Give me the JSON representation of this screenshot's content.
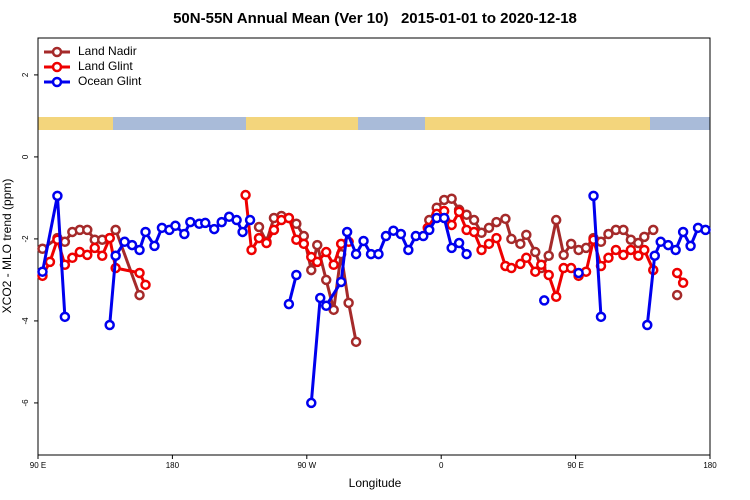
{
  "chart_data": {
    "type": "line",
    "title": "50N-55N Annual Mean (Ver 10)   2015-01-01 to 2020-12-18",
    "x_label": "Longitude",
    "y_label": "XCO2 - MLO trend (ppm)",
    "xlim": [
      90,
      540
    ],
    "xticks": [
      {
        "value": 90,
        "label": "90 E"
      },
      180,
      {
        "value": 270,
        "label": "90 W"
      },
      {
        "value": 360,
        "label": "0"
      },
      {
        "value": 450,
        "label": "90 E"
      },
      {
        "value": 540,
        "label": "180"
      }
    ],
    "ylim": [
      -7.27,
      2.9
    ],
    "yticks": [
      2,
      0,
      -2,
      -4,
      -6
    ],
    "legend": "top-left",
    "series": [
      {
        "name": "Land Nadir",
        "color": "#a52a2a",
        "x": [
          93,
          103,
          108,
          113,
          118,
          123,
          128,
          133,
          138,
          142,
          158,
          null,
          238,
          243,
          248,
          253,
          258,
          263,
          268,
          273,
          277,
          283,
          288,
          293,
          298,
          303,
          null,
          352,
          357,
          362,
          367,
          372,
          377,
          382,
          387,
          392,
          397,
          403,
          407,
          413,
          417,
          423,
          427,
          432,
          437,
          442,
          447,
          452,
          457,
          462,
          467,
          472,
          477,
          482,
          487,
          492,
          496,
          502,
          null,
          518
        ],
        "values": [
          -2.24,
          -1.98,
          -2.07,
          -1.83,
          -1.78,
          -1.78,
          -2.02,
          -2.02,
          -1.98,
          -1.78,
          -3.37,
          null,
          -1.71,
          -2.07,
          -1.49,
          -1.44,
          -1.49,
          -1.63,
          -1.93,
          -2.76,
          -2.15,
          -3.0,
          -3.73,
          -2.37,
          -3.56,
          -4.51,
          null,
          -1.54,
          -1.24,
          -1.05,
          -1.02,
          -1.29,
          -1.41,
          -1.54,
          -1.85,
          -1.73,
          -1.59,
          -1.51,
          -2.0,
          -2.12,
          -1.9,
          -2.32,
          -2.71,
          -2.41,
          -1.54,
          -2.39,
          -2.12,
          -2.27,
          -2.22,
          -1.98,
          -2.07,
          -1.88,
          -1.78,
          -1.78,
          -2.02,
          -2.1,
          -1.95,
          -1.78,
          null,
          -3.37
        ]
      },
      {
        "name": "Land Glint",
        "color": "#ee0000",
        "x": [
          93,
          98,
          103,
          108,
          113,
          118,
          123,
          128,
          133,
          138,
          142,
          158,
          162,
          null,
          229,
          233,
          238,
          243,
          248,
          253,
          258,
          263,
          268,
          273,
          277,
          283,
          288,
          293,
          298,
          null,
          351,
          357,
          362,
          367,
          372,
          377,
          382,
          387,
          392,
          397,
          403,
          407,
          413,
          417,
          423,
          427,
          432,
          437,
          442,
          447,
          452,
          457,
          462,
          467,
          472,
          477,
          482,
          487,
          492,
          496,
          502,
          null,
          518,
          522
        ],
        "values": [
          -2.9,
          -2.56,
          -2.02,
          -2.63,
          -2.46,
          -2.32,
          -2.39,
          -2.22,
          -2.41,
          -1.98,
          -2.71,
          -2.83,
          -3.12,
          null,
          -0.93,
          -2.27,
          -1.98,
          -2.1,
          -1.78,
          -1.54,
          -1.49,
          -2.02,
          -2.12,
          -2.44,
          -2.56,
          -2.32,
          -2.63,
          -2.12,
          -2.07,
          null,
          -1.73,
          -1.39,
          -1.32,
          -1.66,
          -1.34,
          -1.78,
          -1.83,
          -2.27,
          -2.12,
          -1.98,
          -2.66,
          -2.71,
          -2.61,
          -2.46,
          -2.8,
          -2.63,
          -2.88,
          -3.41,
          -2.71,
          -2.71,
          -2.9,
          -2.8,
          -2.02,
          -2.66,
          -2.46,
          -2.27,
          -2.39,
          -2.27,
          -2.41,
          -2.27,
          -2.76,
          null,
          -2.83,
          -3.07
        ]
      },
      {
        "name": "Ocean Glint",
        "color": "#0000ee",
        "x": [
          93,
          103,
          108,
          null,
          138,
          142,
          148,
          153,
          158,
          162,
          168,
          173,
          178,
          182,
          188,
          192,
          198,
          202,
          208,
          213,
          218,
          223,
          227,
          232,
          null,
          258,
          263,
          null,
          273,
          279,
          283,
          293,
          297,
          303,
          308,
          313,
          318,
          323,
          328,
          333,
          338,
          343,
          348,
          352,
          357,
          362,
          367,
          372,
          377,
          null,
          429,
          null,
          452,
          null,
          462,
          467,
          null,
          498,
          503,
          507,
          512,
          517,
          522,
          527,
          532,
          537
        ],
        "values": [
          -2.8,
          -0.95,
          -3.9,
          null,
          -4.1,
          -2.41,
          -2.07,
          -2.15,
          -2.27,
          -1.83,
          -2.17,
          -1.73,
          -1.78,
          -1.68,
          -1.88,
          -1.59,
          -1.63,
          -1.61,
          -1.76,
          -1.59,
          -1.46,
          -1.54,
          -1.83,
          -1.54,
          null,
          -3.59,
          -2.88,
          null,
          -6.0,
          -3.44,
          -3.63,
          -3.05,
          -1.83,
          -2.37,
          -2.05,
          -2.37,
          -2.37,
          -1.93,
          -1.8,
          -1.88,
          -2.27,
          -1.93,
          -1.93,
          -1.78,
          -1.49,
          -1.49,
          -2.22,
          -2.1,
          -2.37,
          null,
          -3.5,
          null,
          -2.83,
          null,
          -0.95,
          -3.9,
          null,
          -4.1,
          -2.41,
          -2.07,
          -2.15,
          -2.27,
          -1.83,
          -2.17,
          -1.73,
          -1.78
        ]
      }
    ]
  }
}
